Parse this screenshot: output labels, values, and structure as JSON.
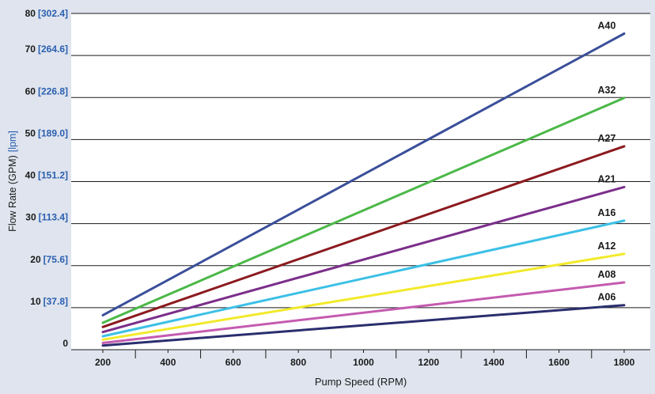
{
  "chart_data": {
    "type": "line",
    "xlabel": "Pump Speed (RPM)",
    "ylabel": "Flow Rate (GPM)",
    "ylabel_alt": "[lpm]",
    "xlim": [
      200,
      1800
    ],
    "ylim": [
      0,
      80
    ],
    "x_ticks": [
      200,
      400,
      600,
      800,
      1000,
      1200,
      1400,
      1600,
      1800
    ],
    "y_ticks": [
      {
        "value": 0,
        "label": "0",
        "alt": ""
      },
      {
        "value": 10,
        "label": "10",
        "alt": "[37.8]"
      },
      {
        "value": 20,
        "label": "20",
        "alt": "[75.6]"
      },
      {
        "value": 30,
        "label": "30",
        "alt": "[113.4]"
      },
      {
        "value": 40,
        "label": "40",
        "alt": "[151.2]"
      },
      {
        "value": 50,
        "label": "50",
        "alt": "[189.0]"
      },
      {
        "value": 60,
        "label": "60",
        "alt": "[226.8]"
      },
      {
        "value": 70,
        "label": "70",
        "alt": "[264.6]"
      },
      {
        "value": 80,
        "label": "80",
        "alt": "[302.4]"
      }
    ],
    "grid": "horizontal",
    "series": [
      {
        "name": "A40",
        "color": "#3a4f9a",
        "x": [
          200,
          1800
        ],
        "y": [
          8.2,
          75.2
        ]
      },
      {
        "name": "A32",
        "color": "#4bb848",
        "x": [
          200,
          1800
        ],
        "y": [
          6.4,
          59.9
        ]
      },
      {
        "name": "A27",
        "color": "#8b1a1f",
        "x": [
          200,
          1800
        ],
        "y": [
          5.4,
          48.4
        ]
      },
      {
        "name": "A21",
        "color": "#7b2e8a",
        "x": [
          200,
          1800
        ],
        "y": [
          4.2,
          38.7
        ]
      },
      {
        "name": "A16",
        "color": "#3cc0e6",
        "x": [
          200,
          1800
        ],
        "y": [
          3.2,
          30.7
        ]
      },
      {
        "name": "A12",
        "color": "#f2ea2a",
        "x": [
          200,
          1800
        ],
        "y": [
          2.4,
          22.8
        ]
      },
      {
        "name": "A08",
        "color": "#c45bb0",
        "x": [
          200,
          1800
        ],
        "y": [
          1.6,
          16.0
        ]
      },
      {
        "name": "A06",
        "color": "#2a2e6e",
        "x": [
          200,
          1800
        ],
        "y": [
          1.0,
          10.6
        ]
      }
    ],
    "colors": {
      "background": "#dfe4ee",
      "plot": "#ffffff",
      "tick_alt": "#2a5fb0",
      "text": "#1a1a1a"
    }
  }
}
